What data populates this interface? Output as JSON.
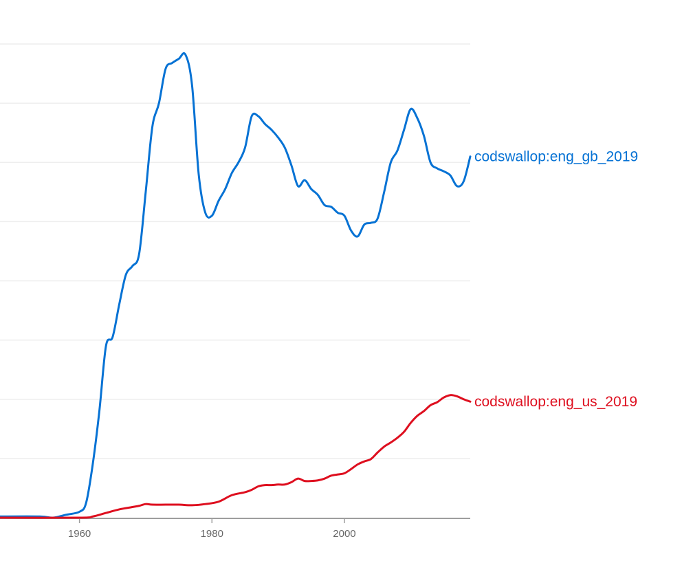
{
  "colors": {
    "gb": "#0672d4",
    "us": "#de0f1f",
    "grid": "#eeeeee",
    "axis": "#9e9e9e"
  },
  "chart_data": {
    "type": "line",
    "title": "",
    "xlabel": "",
    "ylabel": "",
    "xlim": [
      1948,
      2019
    ],
    "ylim": [
      0,
      8
    ],
    "x_ticks": [
      1960,
      1980,
      2000
    ],
    "x_tick_labels": [
      "1960",
      "1980",
      "2000"
    ],
    "y_gridlines": [
      1,
      2,
      3,
      4,
      5,
      6,
      7,
      8
    ],
    "y_tick_labels_visible": false,
    "grid": true,
    "legend": "inline labels at right end of lines",
    "series": [
      {
        "name": "codswallop:eng_gb_2019",
        "color": "#0672d4",
        "points": [
          [
            1948,
            0.02
          ],
          [
            1954,
            0.02
          ],
          [
            1956,
            0.0
          ],
          [
            1958,
            0.05
          ],
          [
            1960,
            0.1
          ],
          [
            1961,
            0.25
          ],
          [
            1962,
            0.9
          ],
          [
            1963,
            1.8
          ],
          [
            1964,
            2.9
          ],
          [
            1965,
            3.05
          ],
          [
            1966,
            3.6
          ],
          [
            1967,
            4.1
          ],
          [
            1968,
            4.25
          ],
          [
            1969,
            4.45
          ],
          [
            1970,
            5.5
          ],
          [
            1971,
            6.6
          ],
          [
            1972,
            7.0
          ],
          [
            1973,
            7.58
          ],
          [
            1974,
            7.68
          ],
          [
            1975,
            7.75
          ],
          [
            1976,
            7.82
          ],
          [
            1977,
            7.3
          ],
          [
            1978,
            5.8
          ],
          [
            1979,
            5.15
          ],
          [
            1980,
            5.1
          ],
          [
            1981,
            5.35
          ],
          [
            1982,
            5.55
          ],
          [
            1983,
            5.82
          ],
          [
            1984,
            6.0
          ],
          [
            1985,
            6.25
          ],
          [
            1986,
            6.78
          ],
          [
            1987,
            6.78
          ],
          [
            1988,
            6.65
          ],
          [
            1989,
            6.55
          ],
          [
            1990,
            6.42
          ],
          [
            1991,
            6.25
          ],
          [
            1992,
            5.95
          ],
          [
            1993,
            5.6
          ],
          [
            1994,
            5.7
          ],
          [
            1995,
            5.55
          ],
          [
            1996,
            5.45
          ],
          [
            1997,
            5.28
          ],
          [
            1998,
            5.25
          ],
          [
            1999,
            5.15
          ],
          [
            2000,
            5.1
          ],
          [
            2001,
            4.85
          ],
          [
            2002,
            4.75
          ],
          [
            2003,
            4.95
          ],
          [
            2004,
            4.98
          ],
          [
            2005,
            5.05
          ],
          [
            2006,
            5.5
          ],
          [
            2007,
            6.0
          ],
          [
            2008,
            6.2
          ],
          [
            2009,
            6.55
          ],
          [
            2010,
            6.9
          ],
          [
            2011,
            6.75
          ],
          [
            2012,
            6.45
          ],
          [
            2013,
            6.0
          ],
          [
            2014,
            5.9
          ],
          [
            2015,
            5.85
          ],
          [
            2016,
            5.78
          ],
          [
            2017,
            5.6
          ],
          [
            2018,
            5.68
          ],
          [
            2019,
            6.1
          ]
        ]
      },
      {
        "name": "codswallop:eng_us_2019",
        "color": "#de0f1f",
        "points": [
          [
            1948,
            0.0
          ],
          [
            1960,
            0.0
          ],
          [
            1962,
            0.02
          ],
          [
            1964,
            0.08
          ],
          [
            1966,
            0.14
          ],
          [
            1968,
            0.18
          ],
          [
            1969,
            0.2
          ],
          [
            1970,
            0.23
          ],
          [
            1971,
            0.22
          ],
          [
            1973,
            0.22
          ],
          [
            1975,
            0.22
          ],
          [
            1977,
            0.21
          ],
          [
            1979,
            0.23
          ],
          [
            1981,
            0.27
          ],
          [
            1983,
            0.38
          ],
          [
            1985,
            0.43
          ],
          [
            1986,
            0.47
          ],
          [
            1987,
            0.53
          ],
          [
            1988,
            0.55
          ],
          [
            1989,
            0.55
          ],
          [
            1990,
            0.56
          ],
          [
            1991,
            0.56
          ],
          [
            1992,
            0.6
          ],
          [
            1993,
            0.66
          ],
          [
            1994,
            0.62
          ],
          [
            1995,
            0.62
          ],
          [
            1996,
            0.63
          ],
          [
            1997,
            0.66
          ],
          [
            1998,
            0.71
          ],
          [
            1999,
            0.73
          ],
          [
            2000,
            0.75
          ],
          [
            2001,
            0.82
          ],
          [
            2002,
            0.9
          ],
          [
            2003,
            0.95
          ],
          [
            2004,
            0.99
          ],
          [
            2005,
            1.1
          ],
          [
            2006,
            1.2
          ],
          [
            2007,
            1.27
          ],
          [
            2008,
            1.35
          ],
          [
            2009,
            1.45
          ],
          [
            2010,
            1.6
          ],
          [
            2011,
            1.72
          ],
          [
            2012,
            1.8
          ],
          [
            2013,
            1.9
          ],
          [
            2014,
            1.95
          ],
          [
            2015,
            2.03
          ],
          [
            2016,
            2.07
          ],
          [
            2017,
            2.05
          ],
          [
            2018,
            2.0
          ],
          [
            2019,
            1.96
          ]
        ]
      }
    ]
  }
}
